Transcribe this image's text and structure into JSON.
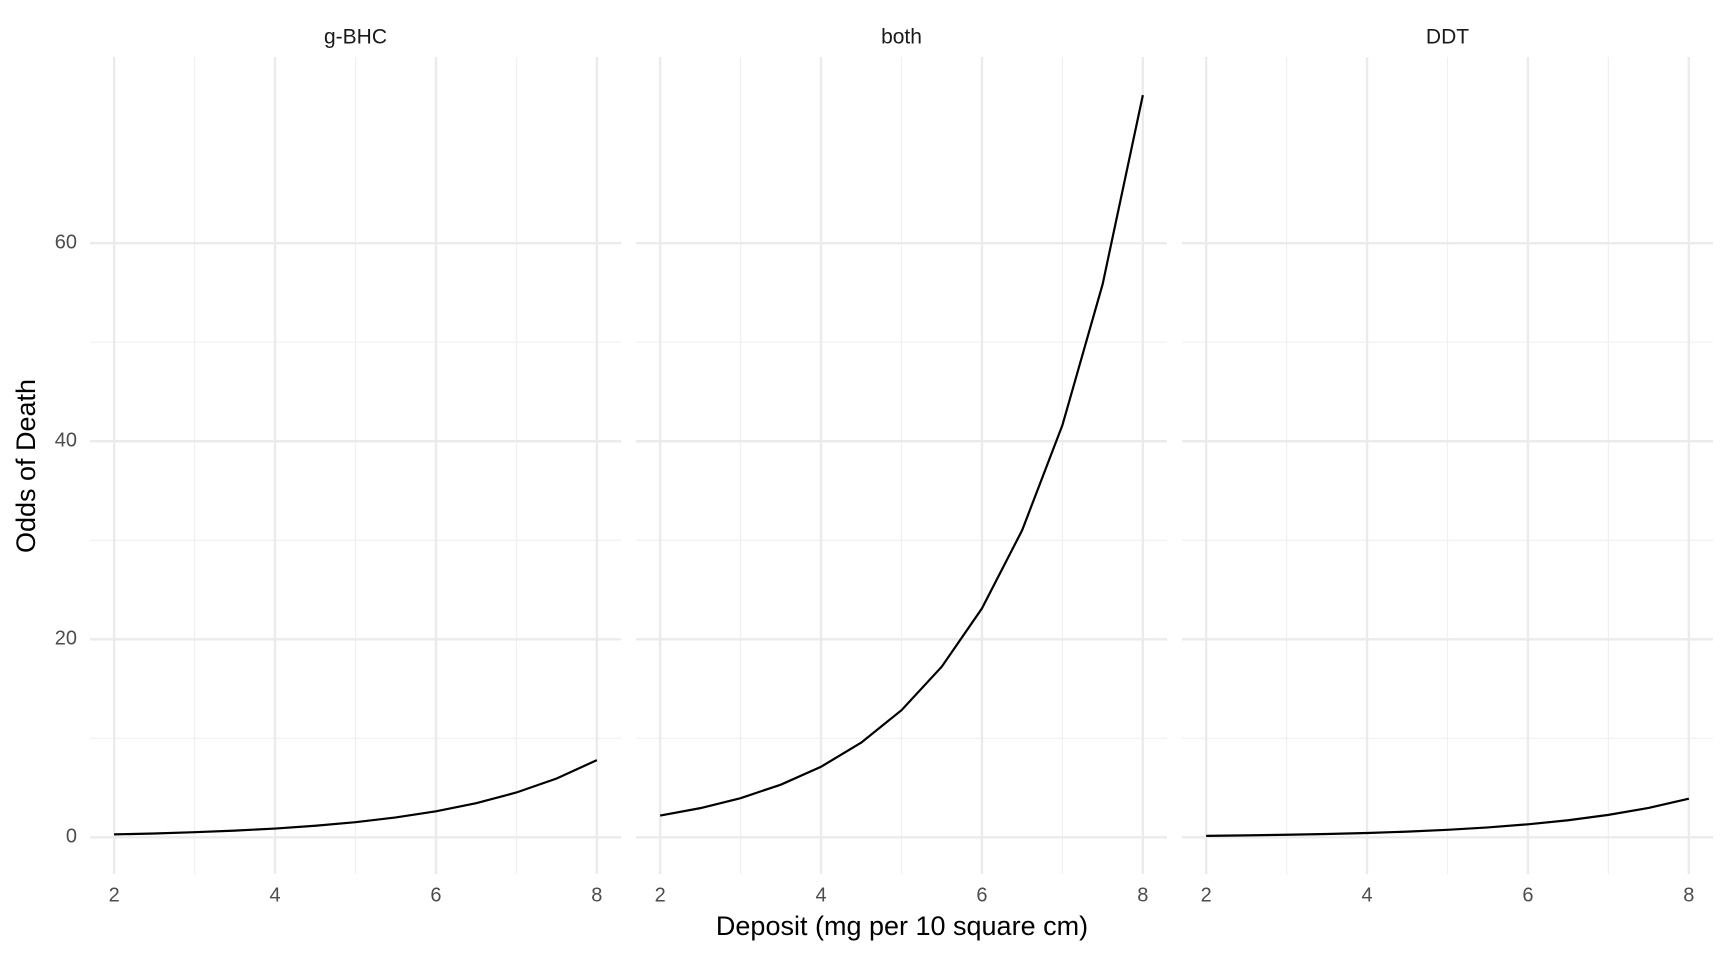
{
  "chart_data": {
    "type": "line",
    "xlabel": "Deposit (mg per 10 square cm)",
    "ylabel": "Odds of Death",
    "xlim": [
      1.7,
      8.3
    ],
    "xticks": [
      2,
      4,
      6,
      8
    ],
    "ylim": [
      -3.7,
      78.8
    ],
    "yticks": [
      0,
      20,
      40,
      60
    ],
    "grid": true,
    "minor_grid": true,
    "color": "#000000",
    "facets": [
      {
        "title": "g-BHC",
        "x": [
          2,
          2.5,
          3,
          3.5,
          4,
          4.5,
          5,
          5.5,
          6,
          6.5,
          7,
          7.5,
          8
        ],
        "values": [
          0.3,
          0.39,
          0.52,
          0.68,
          0.89,
          1.17,
          1.53,
          2.01,
          2.63,
          3.45,
          4.53,
          5.94,
          7.8
        ]
      },
      {
        "title": "both",
        "x": [
          2,
          2.5,
          3,
          3.5,
          4,
          4.5,
          5,
          5.5,
          6,
          6.5,
          7,
          7.5,
          8
        ],
        "values": [
          2.2,
          2.95,
          3.96,
          5.32,
          7.13,
          9.57,
          12.84,
          17.23,
          23.12,
          31.02,
          41.62,
          55.86,
          74.95
        ]
      },
      {
        "title": "DDT",
        "x": [
          2,
          2.5,
          3,
          3.5,
          4,
          4.5,
          5,
          5.5,
          6,
          6.5,
          7,
          7.5,
          8
        ],
        "values": [
          0.15,
          0.2,
          0.26,
          0.34,
          0.44,
          0.58,
          0.76,
          1.0,
          1.32,
          1.73,
          2.27,
          2.97,
          3.9
        ]
      }
    ]
  }
}
